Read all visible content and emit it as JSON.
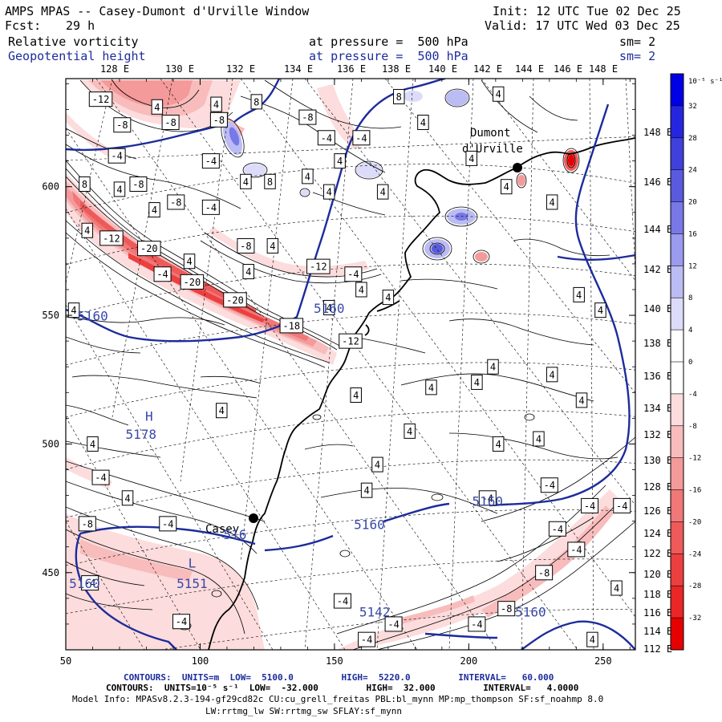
{
  "header": {
    "title": "AMPS MPAS -- Casey-Dumont d'Urville Window",
    "init": "Init: 12 UTC Tue 02 Dec 25",
    "fcst_label": "Fcst:",
    "fcst_value": "29 h",
    "valid": "Valid: 17 UTC Wed 03 Dec 25",
    "field1_name": "Relative vorticity",
    "field1_level": "at pressure =  500 hPa",
    "field1_sm": "sm= 2",
    "field2_name": "Geopotential height",
    "field2_level": "at pressure =  500 hPa",
    "field2_sm": "sm= 2"
  },
  "axes": {
    "x_ticks": [
      50,
      100,
      150,
      200,
      250
    ],
    "x_range": [
      50,
      262
    ],
    "y_ticks": [
      450,
      500,
      550,
      600
    ],
    "y_range": [
      420,
      642
    ],
    "lon_labels_top": [
      "128 E",
      "130 E",
      "132 E",
      "134 E",
      "136 E",
      "138 E",
      "140 E",
      "142 E",
      "144 E",
      "146 E",
      "148 E"
    ],
    "lat_labels_right": [
      "148 E",
      "146 E",
      "144 E",
      "142 E",
      "140 E",
      "138 E",
      "136 E",
      "134 E",
      "132 E",
      "130 E",
      "128 E",
      "126 E",
      "124 E",
      "122 E",
      "120 E",
      "118 E",
      "116 E",
      "114 E",
      "112 E"
    ]
  },
  "colorbar": {
    "unit": "10⁻⁵ s⁻¹",
    "levels": [
      "32",
      "28",
      "24",
      "20",
      "16",
      "12",
      "8",
      "4",
      "0",
      "-4",
      "-8",
      "-12",
      "-16",
      "-20",
      "-24",
      "-28",
      "-32"
    ],
    "colors": [
      "#0000e6",
      "#2626e0",
      "#4040dc",
      "#5a5ade",
      "#7878e6",
      "#9a9aee",
      "#bcbcf4",
      "#dcdcfa",
      "#ffffff",
      "#ffffff",
      "#fcdcdc",
      "#f8bcbc",
      "#f49a9a",
      "#f07878",
      "#ee5a5a",
      "#ec4040",
      "#ea2626",
      "#e60000"
    ]
  },
  "height_labels": [
    {
      "text": "5160",
      "x": 60,
      "y": 548
    },
    {
      "text": "5160",
      "x": 148,
      "y": 551
    },
    {
      "text": "H",
      "x": 81,
      "y": 509
    },
    {
      "text": "5178",
      "x": 78,
      "y": 502
    },
    {
      "text": "5160",
      "x": 207,
      "y": 476
    },
    {
      "text": "5160",
      "x": 163,
      "y": 467
    },
    {
      "text": "516",
      "x": 113,
      "y": 463
    },
    {
      "text": "L",
      "x": 97,
      "y": 452
    },
    {
      "text": "5151",
      "x": 97,
      "y": 444
    },
    {
      "text": "5160",
      "x": 57,
      "y": 444
    },
    {
      "text": "5142",
      "x": 165,
      "y": 433
    },
    {
      "text": "5160",
      "x": 223,
      "y": 433
    }
  ],
  "stations": [
    {
      "name": "Casey",
      "x": 119,
      "y": 473
    },
    {
      "name": "Dumont\nd'Urville",
      "x": 236,
      "y": 607
    }
  ],
  "vorticity_labels": [
    {
      "t": "-12",
      "x": 63,
      "y": 634
    },
    {
      "t": "4",
      "x": 84,
      "y": 631
    },
    {
      "t": "-8",
      "x": 71,
      "y": 624
    },
    {
      "t": "-8",
      "x": 89,
      "y": 625
    },
    {
      "t": "8",
      "x": 121,
      "y": 633
    },
    {
      "t": "4",
      "x": 106,
      "y": 632
    },
    {
      "t": "-8",
      "x": 107,
      "y": 626
    },
    {
      "t": "-4",
      "x": 69,
      "y": 612
    },
    {
      "t": "-4",
      "x": 104,
      "y": 610
    },
    {
      "t": "8",
      "x": 126,
      "y": 602
    },
    {
      "t": "4",
      "x": 117,
      "y": 602
    },
    {
      "t": "4",
      "x": 140,
      "y": 604
    },
    {
      "t": "4",
      "x": 152,
      "y": 610
    },
    {
      "t": "-4",
      "x": 147,
      "y": 619
    },
    {
      "t": "-4",
      "x": 160,
      "y": 619
    },
    {
      "t": "-8",
      "x": 140,
      "y": 627
    },
    {
      "t": "8",
      "x": 174,
      "y": 635
    },
    {
      "t": "4",
      "x": 183,
      "y": 625
    },
    {
      "t": "4",
      "x": 211,
      "y": 636
    },
    {
      "t": "4",
      "x": 168,
      "y": 598
    },
    {
      "t": "4",
      "x": 148,
      "y": 598
    },
    {
      "t": "4",
      "x": 201,
      "y": 611
    },
    {
      "t": "4",
      "x": 214,
      "y": 600
    },
    {
      "t": "4",
      "x": 231,
      "y": 594
    },
    {
      "t": "8",
      "x": 57,
      "y": 601
    },
    {
      "t": "4",
      "x": 70,
      "y": 599
    },
    {
      "t": "-8",
      "x": 77,
      "y": 601
    },
    {
      "t": "4",
      "x": 83,
      "y": 591
    },
    {
      "t": "-8",
      "x": 91,
      "y": 594
    },
    {
      "t": "-4",
      "x": 104,
      "y": 592
    },
    {
      "t": "-12",
      "x": 67,
      "y": 580
    },
    {
      "t": "4",
      "x": 58,
      "y": 583
    },
    {
      "t": "-20",
      "x": 81,
      "y": 576
    },
    {
      "t": "-8",
      "x": 117,
      "y": 577
    },
    {
      "t": "4",
      "x": 127,
      "y": 577
    },
    {
      "t": "4",
      "x": 96,
      "y": 571
    },
    {
      "t": "-4",
      "x": 86,
      "y": 566
    },
    {
      "t": "4",
      "x": 118,
      "y": 567
    },
    {
      "t": "-20",
      "x": 97,
      "y": 563
    },
    {
      "t": "-12",
      "x": 144,
      "y": 569
    },
    {
      "t": "-4",
      "x": 157,
      "y": 566
    },
    {
      "t": "4",
      "x": 160,
      "y": 560
    },
    {
      "t": "-20",
      "x": 113,
      "y": 556
    },
    {
      "t": "4",
      "x": 148,
      "y": 553
    },
    {
      "t": "-18",
      "x": 134,
      "y": 546
    },
    {
      "t": "-12",
      "x": 156,
      "y": 540
    },
    {
      "t": "4",
      "x": 53,
      "y": 552
    },
    {
      "t": "4",
      "x": 170,
      "y": 557
    },
    {
      "t": "4",
      "x": 241,
      "y": 558
    },
    {
      "t": "4",
      "x": 249,
      "y": 552
    },
    {
      "t": "4",
      "x": 209,
      "y": 530
    },
    {
      "t": "4",
      "x": 231,
      "y": 527
    },
    {
      "t": "4",
      "x": 158,
      "y": 519
    },
    {
      "t": "4",
      "x": 186,
      "y": 522
    },
    {
      "t": "4",
      "x": 203,
      "y": 524
    },
    {
      "t": "4",
      "x": 242,
      "y": 517
    },
    {
      "t": "4",
      "x": 108,
      "y": 513
    },
    {
      "t": "4",
      "x": 178,
      "y": 505
    },
    {
      "t": "4",
      "x": 211,
      "y": 500
    },
    {
      "t": "4",
      "x": 226,
      "y": 502
    },
    {
      "t": "4",
      "x": 60,
      "y": 500
    },
    {
      "t": "4",
      "x": 166,
      "y": 492
    },
    {
      "t": "4",
      "x": 162,
      "y": 482
    },
    {
      "t": "-4",
      "x": 63,
      "y": 487
    },
    {
      "t": "4",
      "x": 73,
      "y": 479
    },
    {
      "t": "-4",
      "x": 207,
      "y": 479
    },
    {
      "t": "-4",
      "x": 230,
      "y": 484
    },
    {
      "t": "-4",
      "x": 245,
      "y": 476
    },
    {
      "t": "-4",
      "x": 257,
      "y": 476
    },
    {
      "t": "-8",
      "x": 58,
      "y": 469
    },
    {
      "t": "-4",
      "x": 88,
      "y": 469
    },
    {
      "t": "-4",
      "x": 233,
      "y": 467
    },
    {
      "t": "-4",
      "x": 240,
      "y": 459
    },
    {
      "t": "-8",
      "x": 228,
      "y": 450
    },
    {
      "t": "-4",
      "x": 59,
      "y": 446
    },
    {
      "t": "-4",
      "x": 153,
      "y": 439
    },
    {
      "t": "-8",
      "x": 214,
      "y": 436
    },
    {
      "t": "-4",
      "x": 172,
      "y": 430
    },
    {
      "t": "-4",
      "x": 203,
      "y": 430
    },
    {
      "t": "-4",
      "x": 93,
      "y": 431
    },
    {
      "t": "-4",
      "x": 162,
      "y": 424
    },
    {
      "t": "4",
      "x": 255,
      "y": 444
    },
    {
      "t": "4",
      "x": 246,
      "y": 424
    }
  ],
  "footer": {
    "line1_contours": "CONTOURS:  UNITS=m  LOW=  5100.0         HIGH=  5220.0         INTERVAL=   60.000",
    "line2_contours": "CONTOURS:  UNITS=10⁻⁵ s⁻¹  LOW=  -32.000         HIGH=  32.000         INTERVAL=   4.0000",
    "line3_model": "Model Info: MPASv8.2.3-194-gf29cd82c CU:cu_grell_freitas PBL:bl_mynn MP:mp_thompson SF:sf_noahmp 8.0",
    "line4_model": "LW:rrtmg_lw SW:rrtmg_sw SFLAY:sf_mynn"
  }
}
